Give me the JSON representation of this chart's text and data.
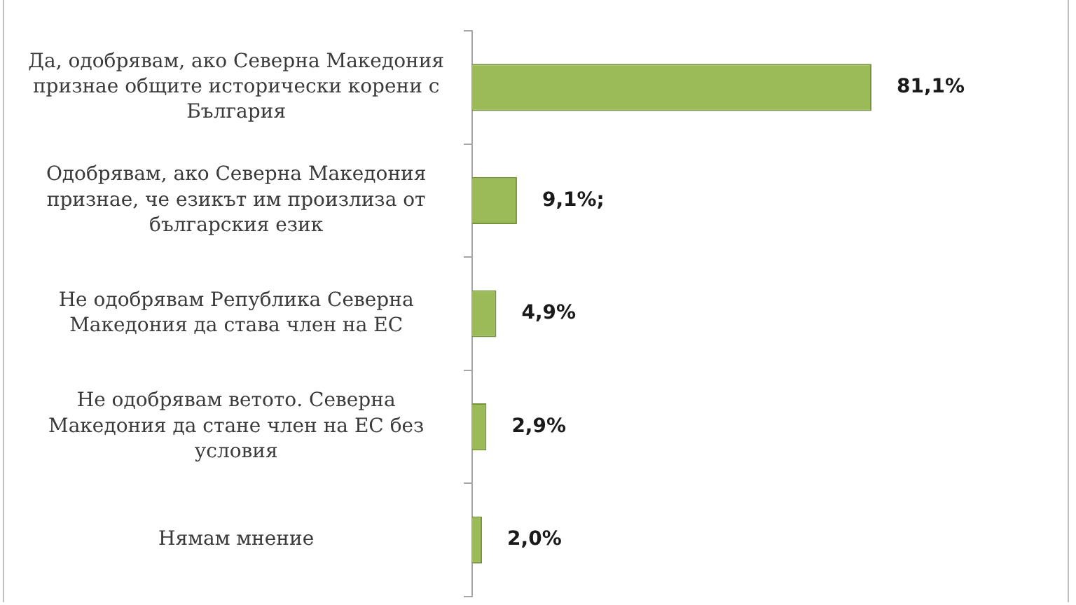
{
  "chart_data": {
    "type": "bar",
    "orientation": "horizontal",
    "categories": [
      "Да, одобрявам, ако Северна Македония признае общите исторически корени с България",
      "Одобрявам, ако Северна Македония признае, че езикът им произлиза от българския език",
      "Не одобрявам Република Северна Македония да става член на ЕС",
      "Не одобрявам ветото. Северна Македония да стане член на ЕС без условия",
      "Нямам мнение"
    ],
    "values": [
      81.1,
      9.1,
      4.9,
      2.9,
      2.0
    ],
    "value_labels": [
      "81,1%",
      "9,1%;",
      "4,9%",
      "2,9%",
      "2,0%"
    ],
    "color": "#9bbb59"
  }
}
